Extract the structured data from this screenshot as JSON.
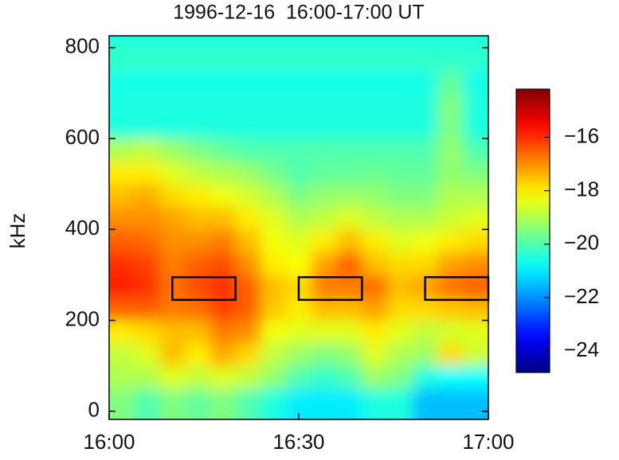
{
  "chart_data": {
    "type": "heatmap",
    "title": "1996-12-16  16:00-17:00 UT",
    "y_label": "kHz",
    "colormap": "jet",
    "xlim": [
      0,
      60
    ],
    "ylim": [
      -18,
      826
    ],
    "xticks": [
      {
        "value": 0,
        "label": "16:00"
      },
      {
        "value": 30,
        "label": "16:30"
      },
      {
        "value": 60,
        "label": "17:00"
      }
    ],
    "yticks": [
      0,
      200,
      400,
      600,
      800
    ],
    "xbins": [
      0,
      4,
      8,
      12,
      16,
      20,
      24,
      28,
      32,
      36,
      40,
      44,
      48,
      52,
      56,
      60
    ],
    "ybins": [
      -18,
      50,
      100,
      150,
      200,
      250,
      300,
      350,
      400,
      450,
      500,
      550,
      600,
      650,
      700,
      750,
      800,
      826
    ],
    "z": [
      [
        -19.5,
        -20,
        -19.5,
        -19.8,
        -19.5,
        -20,
        -20.5,
        -21,
        -21,
        -21,
        -20.5,
        -20.5,
        -21.5,
        -21.5,
        -21.5
      ],
      [
        -19,
        -19,
        -18.5,
        -18.8,
        -18.5,
        -18.8,
        -19.3,
        -20,
        -20.3,
        -20,
        -19.2,
        -19.5,
        -20.5,
        -20.8,
        -20.8
      ],
      [
        -18.8,
        -18.5,
        -17.5,
        -18,
        -17.3,
        -17.8,
        -18.8,
        -19.2,
        -19.5,
        -19.3,
        -18.5,
        -19,
        -19.2,
        -17.8,
        -18.7
      ],
      [
        -18,
        -17.8,
        -17.5,
        -17.5,
        -16.8,
        -17,
        -18.3,
        -18.5,
        -18.5,
        -18.5,
        -18,
        -18.5,
        -18.8,
        -18.6,
        -18.5
      ],
      [
        -16.5,
        -16.5,
        -16.8,
        -16.7,
        -16.2,
        -16.5,
        -17.6,
        -18,
        -17.5,
        -17.5,
        -17.2,
        -17.8,
        -17.8,
        -17.6,
        -17.5
      ],
      [
        -15.8,
        -16,
        -16.7,
        -16.3,
        -16,
        -16.5,
        -17.5,
        -17.8,
        -16.8,
        -16.8,
        -16.6,
        -17.5,
        -17.2,
        -16.7,
        -16.5
      ],
      [
        -16,
        -16.2,
        -16.8,
        -16.5,
        -16.3,
        -17,
        -18,
        -18.2,
        -17.2,
        -16.5,
        -17.5,
        -17.8,
        -17.8,
        -17.2,
        -17
      ],
      [
        -16.5,
        -16.6,
        -17,
        -17,
        -16.8,
        -17.5,
        -18.3,
        -18.5,
        -18,
        -17.5,
        -18,
        -18.5,
        -18.3,
        -18,
        -17.8
      ],
      [
        -17,
        -17,
        -17.2,
        -17.5,
        -17.5,
        -18,
        -18.5,
        -19,
        -18.8,
        -18.5,
        -18.8,
        -19,
        -19,
        -18.7,
        -18.5
      ],
      [
        -17.5,
        -17.3,
        -17.8,
        -18,
        -18.3,
        -18.6,
        -19,
        -19.5,
        -19.3,
        -19.2,
        -19.3,
        -19.5,
        -19.5,
        -19,
        -19
      ],
      [
        -18,
        -18,
        -18.5,
        -18.8,
        -19,
        -19.2,
        -19.6,
        -20,
        -19.8,
        -19.8,
        -19.7,
        -19.8,
        -19.8,
        -19.3,
        -19.5
      ],
      [
        -19,
        -18.8,
        -19.2,
        -19.5,
        -19.8,
        -20,
        -20,
        -20,
        -20,
        -20,
        -20,
        -20,
        -20,
        -19.3,
        -20
      ],
      [
        -20.5,
        -20.5,
        -20.5,
        -20.5,
        -20.5,
        -20.5,
        -20.5,
        -20.5,
        -20.5,
        -20.5,
        -20.5,
        -20.5,
        -20.5,
        -19.5,
        -20.5
      ],
      [
        -20.5,
        -20.5,
        -20.5,
        -20.5,
        -20.5,
        -20.5,
        -20.5,
        -20.5,
        -20.5,
        -20.5,
        -20.5,
        -20.5,
        -20.5,
        -19.5,
        -20.5
      ],
      [
        -20.6,
        -20.6,
        -20.6,
        -20.6,
        -20.6,
        -20.6,
        -20.6,
        -20.6,
        -20.6,
        -20.6,
        -20.6,
        -20.6,
        -20.6,
        -19.8,
        -20.6
      ],
      [
        -20.3,
        -20.3,
        -20.3,
        -20.3,
        -20.3,
        -20.3,
        -20.3,
        -20.3,
        -20.3,
        -20.3,
        -20.3,
        -20.3,
        -20.3,
        -20.3,
        -20.3
      ],
      [
        -20.5,
        -20.5,
        -20.5,
        -20.5,
        -20.5,
        -20.5,
        -20.5,
        -20.5,
        -20.5,
        -20.5,
        -20.5,
        -20.5,
        -20.5,
        -20.5,
        -20.5
      ]
    ],
    "regions": [
      {
        "x": [
          10,
          20
        ],
        "y": [
          245,
          295
        ]
      },
      {
        "x": [
          30,
          40
        ],
        "y": [
          245,
          295
        ]
      },
      {
        "x": [
          50,
          60
        ],
        "y": [
          245,
          295
        ]
      }
    ],
    "clim": [
      -24.8,
      -14.2
    ],
    "cticks": [
      {
        "value": -16,
        "label": "−16"
      },
      {
        "value": -18,
        "label": "−18"
      },
      {
        "value": -20,
        "label": "−20"
      },
      {
        "value": -22,
        "label": "−22"
      },
      {
        "value": -24,
        "label": "−24"
      }
    ]
  }
}
